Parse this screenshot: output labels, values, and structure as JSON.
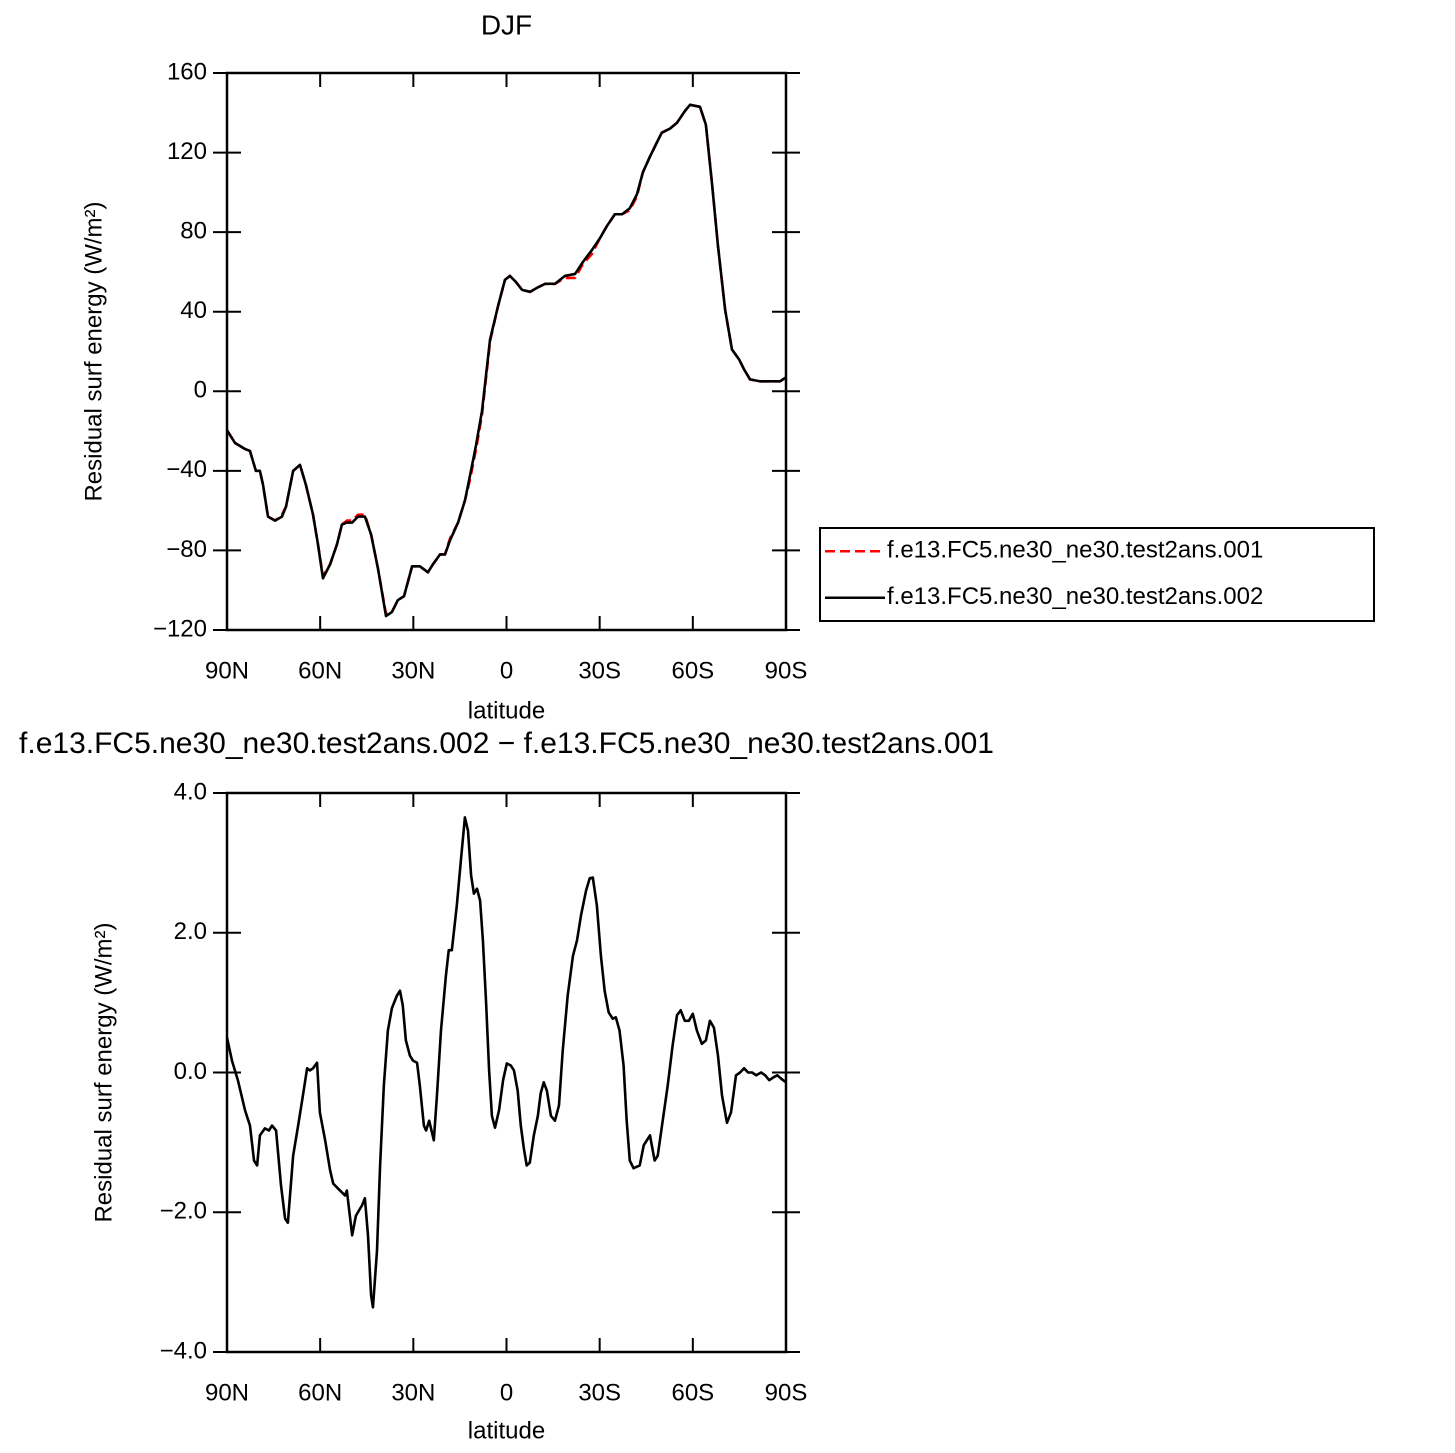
{
  "chart_data": [
    {
      "type": "line",
      "title": "DJF",
      "xlabel": "latitude",
      "ylabel": "Residual surf energy (W/m²)",
      "xlim": [
        90,
        -90
      ],
      "xticks": [
        {
          "value": 90,
          "label": "90N"
        },
        {
          "value": 60,
          "label": "60N"
        },
        {
          "value": 30,
          "label": "30N"
        },
        0,
        {
          "value": -30,
          "label": "30S"
        },
        {
          "value": -60,
          "label": "60S"
        },
        {
          "value": -90,
          "label": "90S"
        }
      ],
      "ylim": [
        -120,
        160
      ],
      "yticks": [
        {
          "value": -120,
          "label": "−120"
        },
        {
          "value": -80,
          "label": "−80"
        },
        {
          "value": -40,
          "label": "−40"
        },
        0,
        40,
        80,
        120,
        160
      ],
      "legend": "right",
      "x": [
        90,
        87.4,
        84.2,
        82.6,
        80.7,
        79.4,
        78.4,
        76.8,
        74.5,
        72.3,
        71,
        68.7,
        66.5,
        64.6,
        62.3,
        60.7,
        59.1,
        56.8,
        54.6,
        53,
        51.4,
        49.7,
        47.8,
        45.6,
        43.6,
        41.4,
        38.8,
        36.9,
        35,
        33,
        30.4,
        27.9,
        25.3,
        23.7,
        21.4,
        19.8,
        18.2,
        15.6,
        13.4,
        11.7,
        9.8,
        7.9,
        5.3,
        2.7,
        0.5,
        -1.1,
        -3,
        -5,
        -7.6,
        -9.8,
        -12.4,
        -15.6,
        -18.8,
        -22.1,
        -24.6,
        -27.5,
        -30.1,
        -32.3,
        -34.9,
        -37.2,
        -39.7,
        -42,
        -43.9,
        -46.2,
        -48.4,
        -50,
        -52.6,
        -54.9,
        -57.5,
        -59.1,
        -62.3,
        -64.2,
        -66.2,
        -68.1,
        -70.4,
        -72.6,
        -74.9,
        -76.5,
        -78.4,
        -81.7,
        -84.9,
        -88.1,
        -90
      ],
      "series": [
        {
          "name": "f.e13.FC5.ne30_ne30.test2ans.001",
          "color": "#ff0000",
          "dash": "dashed",
          "values": [
            -19.6,
            -26,
            -29,
            -30,
            -40,
            -40,
            -47,
            -63,
            -65,
            -62,
            -58,
            -40,
            -37,
            -47,
            -62,
            -77,
            -93,
            -87,
            -77,
            -67,
            -65,
            -65,
            -62,
            -62,
            -72,
            -89,
            -112,
            -111,
            -105,
            -103,
            -88,
            -88,
            -91,
            -87,
            -82,
            -82,
            -74,
            -66,
            -55,
            -44,
            -29,
            -12,
            25,
            43,
            56,
            58,
            55,
            51,
            50,
            52,
            54,
            54,
            57,
            57,
            64,
            69,
            77,
            83,
            89,
            89,
            91,
            98,
            110,
            118,
            125,
            130,
            132,
            135,
            141,
            144,
            143,
            134,
            104,
            73,
            41,
            21,
            16,
            11,
            6,
            5,
            5,
            5,
            7
          ]
        },
        {
          "name": "f.e13.FC5.ne30_ne30.test2ans.002",
          "color": "#000000",
          "dash": "solid",
          "values": [
            -19.6,
            -26,
            -29,
            -30,
            -40,
            -40,
            -47,
            -63,
            -65,
            -63,
            -58,
            -40,
            -37,
            -47,
            -62,
            -77,
            -94,
            -87,
            -77,
            -67,
            -66,
            -66,
            -63,
            -63,
            -72,
            -89,
            -113,
            -111,
            -105,
            -103,
            -88,
            -88,
            -91,
            -87,
            -82,
            -82,
            -75,
            -66,
            -55,
            -42,
            -27,
            -10,
            26,
            43,
            56,
            58,
            55,
            51,
            50,
            52,
            54,
            54,
            58,
            59,
            65,
            71,
            77,
            83,
            89,
            89,
            92,
            99,
            110,
            118,
            125,
            130,
            132,
            135,
            141,
            144,
            143,
            134,
            104,
            73,
            41,
            21,
            16,
            11,
            6,
            5,
            5,
            5,
            7
          ]
        }
      ]
    },
    {
      "type": "line",
      "title": "f.e13.FC5.ne30_ne30.test2ans.002 − f.e13.FC5.ne30_ne30.test2ans.001",
      "xlabel": "latitude",
      "ylabel": "Residual surf energy (W/m²)",
      "xlim": [
        90,
        -90
      ],
      "xticks": [
        {
          "value": 90,
          "label": "90N"
        },
        {
          "value": 60,
          "label": "60N"
        },
        {
          "value": 30,
          "label": "30N"
        },
        0,
        {
          "value": -30,
          "label": "30S"
        },
        {
          "value": -60,
          "label": "60S"
        },
        {
          "value": -90,
          "label": "90S"
        }
      ],
      "ylim": [
        -4,
        4
      ],
      "yticks": [
        {
          "value": -4,
          "label": "−4.0"
        },
        {
          "value": -2,
          "label": "−2.0"
        },
        {
          "value": 0,
          "label": "0.0"
        },
        {
          "value": 2,
          "label": "2.0"
        },
        {
          "value": 4,
          "label": "4.0"
        }
      ],
      "x": [
        90,
        88.4,
        86.5,
        84.2,
        82.6,
        81.3,
        80.3,
        79.4,
        77.8,
        76.5,
        75.5,
        74.2,
        72.6,
        71.3,
        70.4,
        68.7,
        67.1,
        65.8,
        64.2,
        63.3,
        62.3,
        61,
        60.1,
        58.4,
        56.8,
        55.8,
        53.6,
        52,
        51.4,
        49.7,
        48.5,
        46.5,
        45.6,
        44.6,
        43.6,
        43,
        41.7,
        40.7,
        39.5,
        38.2,
        36.9,
        35.3,
        34.3,
        33.4,
        32.4,
        31.1,
        30.1,
        28.8,
        27.9,
        26.6,
        25.9,
        24.9,
        23.4,
        22.4,
        21.1,
        19.5,
        18.6,
        17.6,
        16,
        14.7,
        13.4,
        12.4,
        11.4,
        10.5,
        9.5,
        8.5,
        7.6,
        6.6,
        5.6,
        4.7,
        3.7,
        2.4,
        1.1,
        -0.1,
        -1.4,
        -2.4,
        -3.6,
        -4.6,
        -5.6,
        -6.5,
        -7.5,
        -8.8,
        -10.1,
        -11,
        -12,
        -13,
        -14.3,
        -15.6,
        -16.9,
        -18.1,
        -19.7,
        -21.4,
        -22.7,
        -24,
        -25.6,
        -26.8,
        -27.8,
        -29.1,
        -30.4,
        -31.6,
        -32.9,
        -34.2,
        -35.2,
        -36.4,
        -37.7,
        -38.7,
        -39.7,
        -40.9,
        -42.9,
        -44.2,
        -46.2,
        -47.7,
        -48.7,
        -50.3,
        -51.9,
        -53.5,
        -54.9,
        -56.1,
        -57.4,
        -58.7,
        -60,
        -61.3,
        -62.9,
        -64.2,
        -65.5,
        -66.8,
        -68.1,
        -69.4,
        -71,
        -72.3,
        -73.9,
        -75.2,
        -76.5,
        -77.8,
        -79.1,
        -80.4,
        -82,
        -83.3,
        -84.6,
        -85.9,
        -87.2,
        -88.5,
        -90
      ],
      "series": [
        {
          "color": "#000000",
          "dash": "solid",
          "values": [
            0.5,
            0.17,
            -0.11,
            -0.54,
            -0.76,
            -1.26,
            -1.33,
            -0.9,
            -0.8,
            -0.83,
            -0.76,
            -0.83,
            -1.62,
            -2.09,
            -2.15,
            -1.19,
            -0.76,
            -0.4,
            0.06,
            0.03,
            0.06,
            0.14,
            -0.57,
            -0.97,
            -1.4,
            -1.59,
            -1.69,
            -1.76,
            -1.69,
            -2.33,
            -2.05,
            -1.9,
            -1.8,
            -2.33,
            -3.19,
            -3.36,
            -2.55,
            -1.33,
            -0.19,
            0.6,
            0.92,
            1.1,
            1.17,
            0.96,
            0.46,
            0.24,
            0.17,
            0.14,
            -0.19,
            -0.76,
            -0.83,
            -0.69,
            -0.97,
            -0.33,
            0.6,
            1.39,
            1.75,
            1.75,
            2.39,
            3.03,
            3.65,
            3.46,
            2.82,
            2.56,
            2.63,
            2.46,
            1.89,
            1.03,
            0.03,
            -0.62,
            -0.79,
            -0.54,
            -0.11,
            0.13,
            0.1,
            0.03,
            -0.26,
            -0.76,
            -1.09,
            -1.33,
            -1.29,
            -0.9,
            -0.62,
            -0.3,
            -0.14,
            -0.26,
            -0.62,
            -0.69,
            -0.47,
            0.31,
            1.1,
            1.67,
            1.89,
            2.25,
            2.6,
            2.78,
            2.79,
            2.39,
            1.67,
            1.17,
            0.86,
            0.77,
            0.79,
            0.6,
            0.1,
            -0.69,
            -1.26,
            -1.37,
            -1.33,
            -1.04,
            -0.9,
            -1.26,
            -1.19,
            -0.69,
            -0.19,
            0.39,
            0.82,
            0.89,
            0.74,
            0.74,
            0.84,
            0.6,
            0.41,
            0.46,
            0.74,
            0.64,
            0.24,
            -0.33,
            -0.72,
            -0.57,
            -0.04,
            0,
            0.06,
            0,
            0,
            -0.04,
            0,
            -0.04,
            -0.11,
            -0.07,
            -0.04,
            -0.09,
            -0.14
          ]
        }
      ]
    }
  ]
}
